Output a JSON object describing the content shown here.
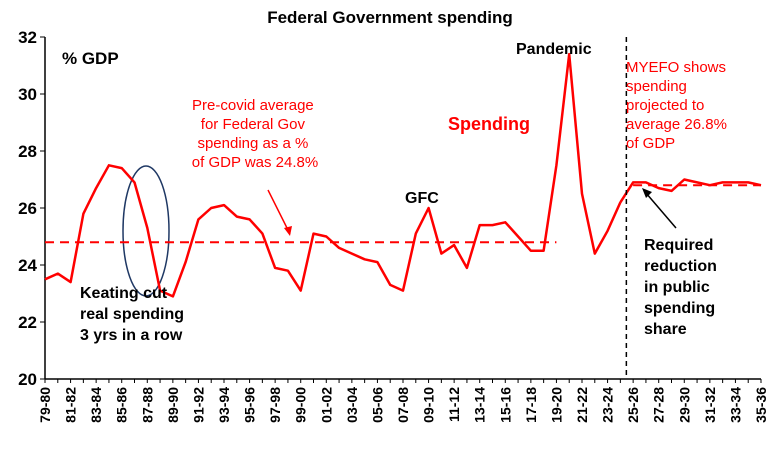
{
  "chart_data": {
    "type": "line",
    "title": "Federal Government spending",
    "unit_label": "% GDP",
    "ylim": [
      20,
      32
    ],
    "yticks": [
      "20",
      "22",
      "24",
      "26",
      "28",
      "30",
      "32"
    ],
    "x_tick_labels": [
      "79-80",
      "81-82",
      "83-84",
      "85-86",
      "87-88",
      "89-90",
      "91-92",
      "93-94",
      "95-96",
      "97-98",
      "99-00",
      "01-02",
      "03-04",
      "05-06",
      "07-08",
      "09-10",
      "11-12",
      "13-14",
      "15-16",
      "17-18",
      "19-20",
      "21-22",
      "23-24",
      "25-26",
      "27-28",
      "29-30",
      "31-32",
      "33-34",
      "35-36"
    ],
    "grid": false,
    "series": [
      {
        "name": "Spending",
        "color": "#ff0000",
        "style": "solid",
        "x": [
          "79-80",
          "80-81",
          "81-82",
          "82-83",
          "83-84",
          "84-85",
          "85-86",
          "86-87",
          "87-88",
          "88-89",
          "89-90",
          "90-91",
          "91-92",
          "92-93",
          "93-94",
          "94-95",
          "95-96",
          "96-97",
          "97-98",
          "98-99",
          "99-00",
          "00-01",
          "01-02",
          "02-03",
          "03-04",
          "04-05",
          "05-06",
          "06-07",
          "07-08",
          "08-09",
          "09-10",
          "10-11",
          "11-12",
          "12-13",
          "13-14",
          "14-15",
          "15-16",
          "16-17",
          "17-18",
          "18-19",
          "19-20",
          "20-21",
          "21-22",
          "22-23",
          "23-24",
          "24-25"
        ],
        "values": [
          23.5,
          23.7,
          23.4,
          25.8,
          26.7,
          27.5,
          27.4,
          26.9,
          25.3,
          23.1,
          22.9,
          24.1,
          25.6,
          26.0,
          26.1,
          25.7,
          25.6,
          25.1,
          23.9,
          23.8,
          23.1,
          25.1,
          25.0,
          24.6,
          24.4,
          24.2,
          24.1,
          23.3,
          23.1,
          25.1,
          26.0,
          24.4,
          24.7,
          23.9,
          25.4,
          25.4,
          25.5,
          25.0,
          24.5,
          24.5,
          27.5,
          31.4,
          26.5,
          24.4,
          25.2,
          26.2
        ]
      },
      {
        "name": "MYEFO projection",
        "color": "#ff0000",
        "style": "solid",
        "x": [
          "24-25",
          "25-26",
          "26-27",
          "27-28",
          "28-29",
          "29-30",
          "30-31",
          "31-32",
          "32-33",
          "33-34",
          "34-35",
          "35-36"
        ],
        "values": [
          26.2,
          26.9,
          26.9,
          26.7,
          26.6,
          27.0,
          26.9,
          26.8,
          26.9,
          26.9,
          26.9,
          26.8
        ]
      },
      {
        "name": "Pre-covid average",
        "color": "#ff0000",
        "style": "dashed",
        "x": [
          "79-80",
          "19-20"
        ],
        "values": [
          24.8,
          24.8
        ]
      },
      {
        "name": "Projected average",
        "color": "#ff0000",
        "style": "dashed",
        "x": [
          "25-26",
          "35-36"
        ],
        "values": [
          26.8,
          26.8
        ]
      }
    ],
    "divider_at": "24-25",
    "annotations": {
      "keating": [
        "Keating cut",
        "real spending",
        "3 yrs in a row"
      ],
      "precovid": [
        "Pre-covid average",
        "for Federal Gov",
        "spending as a %",
        "of GDP was 24.8%"
      ],
      "spending": "Spending",
      "gfc": "GFC",
      "pandemic": "Pandemic",
      "myefo": [
        "MYEFO shows",
        "spending",
        "projected to",
        "average 26.8%",
        "of GDP"
      ],
      "required": [
        "Required",
        "reduction",
        "in public",
        "spending",
        "share"
      ]
    }
  }
}
